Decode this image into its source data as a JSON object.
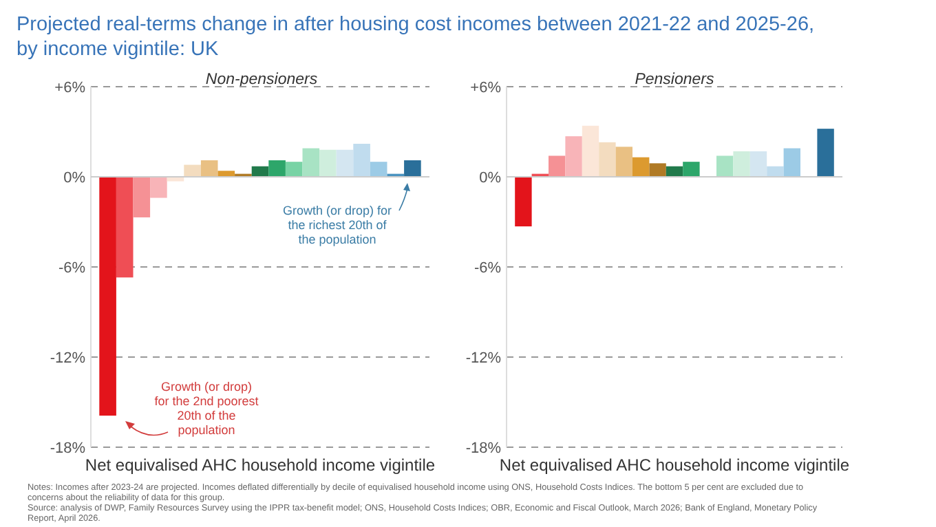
{
  "chart_data": [
    {
      "type": "bar",
      "title": "Projected real-terms change in after housing cost incomes between 2021-22 and 2025-26, by income vigintile: UK",
      "subtitle": "Non-pensioners",
      "xlabel": "Net equivalised AHC household income vigintile",
      "categories": [
        null,
        null,
        null,
        null,
        null,
        null,
        null,
        null,
        null,
        null,
        null,
        null,
        null,
        null,
        null,
        null,
        null,
        null,
        null
      ],
      "values": [
        -15.9,
        -6.7,
        -2.7,
        -1.4,
        -0.3,
        0.8,
        1.1,
        0.4,
        0.2,
        0.7,
        1.1,
        1.0,
        1.9,
        1.8,
        1.8,
        2.2,
        1.0,
        0.2,
        1.1
      ],
      "colors": [
        "#e3141b",
        "#ef4e55",
        "#f59195",
        "#f8b4b8",
        "#fbe6d8",
        "#f3dcbf",
        "#e9c083",
        "#dc9a2f",
        "#b07a25",
        "#217a4b",
        "#2da66a",
        "#78d3a5",
        "#a8e3c4",
        "#cfeedd",
        "#d4e6f1",
        "#c0dcee",
        "#9ccbe6",
        "#4a93c0",
        "#2a6f9a"
      ],
      "ylim": [
        -18,
        6
      ],
      "yticks": [
        {
          "value": 6,
          "label": "+6%"
        },
        {
          "value": 0,
          "label": "0%"
        },
        {
          "value": -6,
          "label": "-6%"
        },
        {
          "value": -12,
          "label": "-12%"
        },
        {
          "value": -18,
          "label": "-18%"
        }
      ],
      "grid": "y",
      "annotations": [
        "Growth (or drop) for the 2nd poorest 20th of the population",
        "Growth (or drop) for the richest 20th of the population"
      ]
    },
    {
      "type": "bar",
      "title": "Pensioners",
      "xlabel": "Net equivalised AHC household income vigintile",
      "categories": [
        null,
        null,
        null,
        null,
        null,
        null,
        null,
        null,
        null,
        null,
        null,
        null,
        null,
        null,
        null,
        null,
        null,
        null,
        null
      ],
      "values": [
        -3.3,
        0.2,
        1.4,
        2.7,
        3.4,
        2.3,
        2.0,
        1.3,
        0.9,
        0.7,
        1.0,
        0.0,
        1.4,
        1.7,
        1.7,
        0.7,
        1.9,
        0.0,
        3.2
      ],
      "colors": [
        "#e3141b",
        "#ef4e55",
        "#f59195",
        "#f8b4b8",
        "#fbe6d8",
        "#f3dcbf",
        "#e9c083",
        "#dc9a2f",
        "#b07a25",
        "#217a4b",
        "#2da66a",
        "#78d3a5",
        "#a8e3c4",
        "#cfeedd",
        "#d4e6f1",
        "#c0dcee",
        "#9ccbe6",
        "#4a93c0",
        "#2a6f9a"
      ],
      "ylim": [
        -18,
        6
      ],
      "yticks": [
        {
          "value": 6,
          "label": "+6%"
        },
        {
          "value": 0,
          "label": "0%"
        },
        {
          "value": -6,
          "label": "-6%"
        },
        {
          "value": -12,
          "label": "-12%"
        },
        {
          "value": -18,
          "label": "-18%"
        }
      ],
      "grid": "y",
      "annotations": [
        "Notes: Incomes after 2023-24 are projected. Incomes deflated differentially by decile of equivalised household income using ONS, Household Costs Indices. The bottom 5 per cent are excluded due to concerns about the reliability of data for this group.",
        "Source: analysis of DWP, Family Resources Survey using the IPPR tax-benefit model; ONS, Household Costs Indices; OBR, Economic and Fiscal Outlook, March 2026; Bank of England, Monetary Policy Report, April 2026."
      ]
    }
  ]
}
